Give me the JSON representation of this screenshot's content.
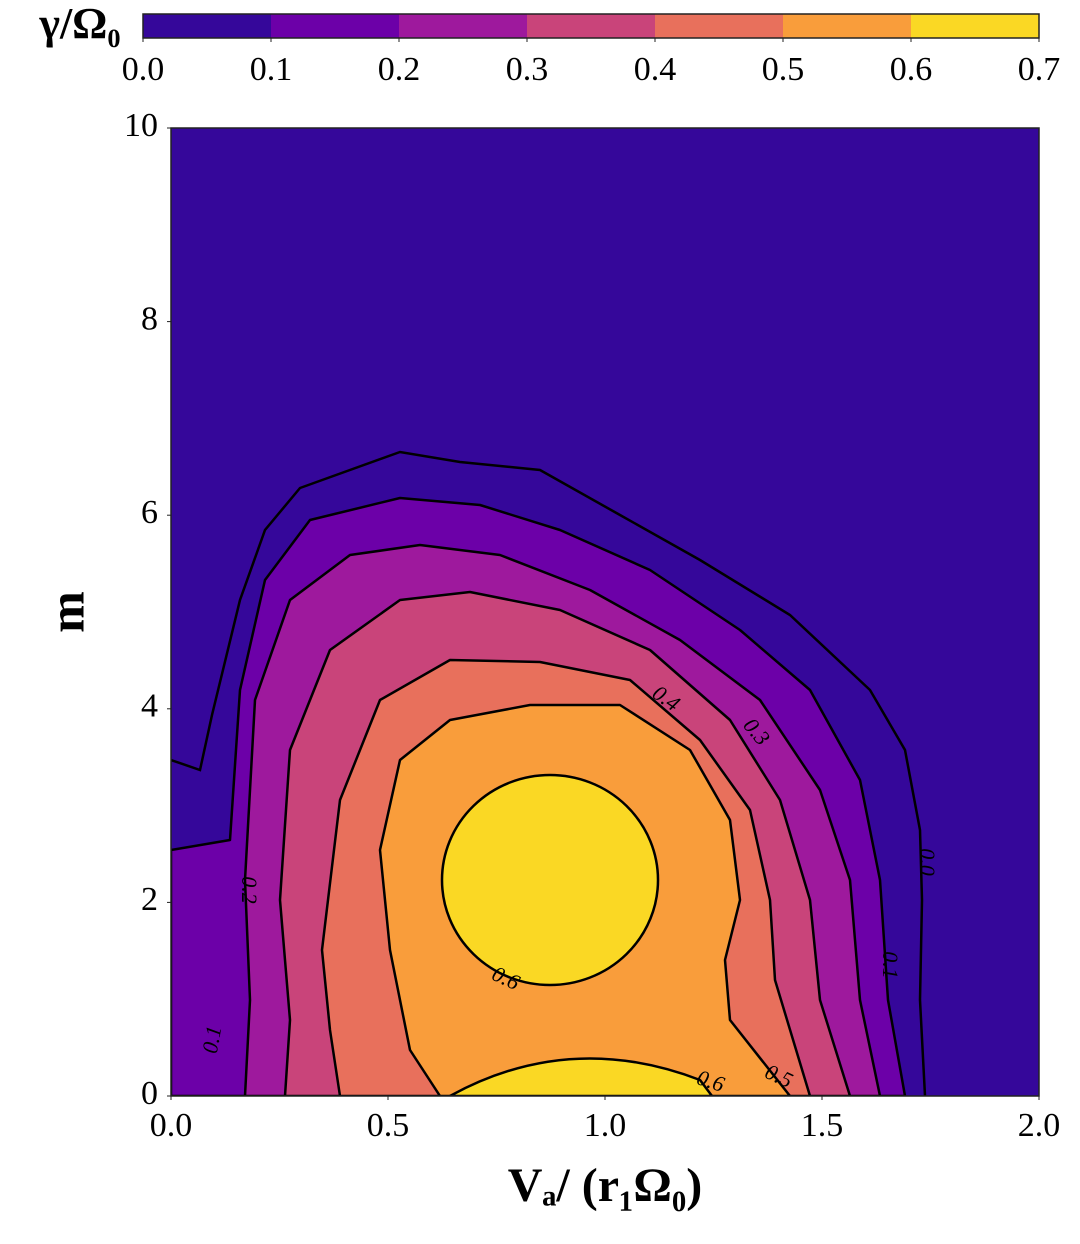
{
  "chart_data": {
    "type": "contourf",
    "colorbar_label": "γ/Ω₀",
    "xlabel": "Vₐ/ (r₁Ω₀)",
    "ylabel": "m",
    "xlim": [
      0,
      2
    ],
    "xticks": [
      {
        "value": 0,
        "label": "0.0"
      },
      0.5,
      {
        "value": 1,
        "label": "1.0"
      },
      1.5,
      {
        "value": 2,
        "label": "2.0"
      }
    ],
    "ylim": [
      0,
      10
    ],
    "yticks": [
      0,
      2,
      4,
      6,
      8,
      10
    ],
    "clim": [
      0,
      0.7
    ],
    "cticks": [
      {
        "value": 0,
        "label": "0.0"
      },
      0.1,
      0.2,
      0.3,
      0.4,
      0.5,
      0.6,
      0.7
    ],
    "colors": [
      "#35079a",
      "#6c00a8",
      "#9e199d",
      "#c9447a",
      "#e8705c",
      "#f99d3b",
      "#fad824"
    ]
  }
}
